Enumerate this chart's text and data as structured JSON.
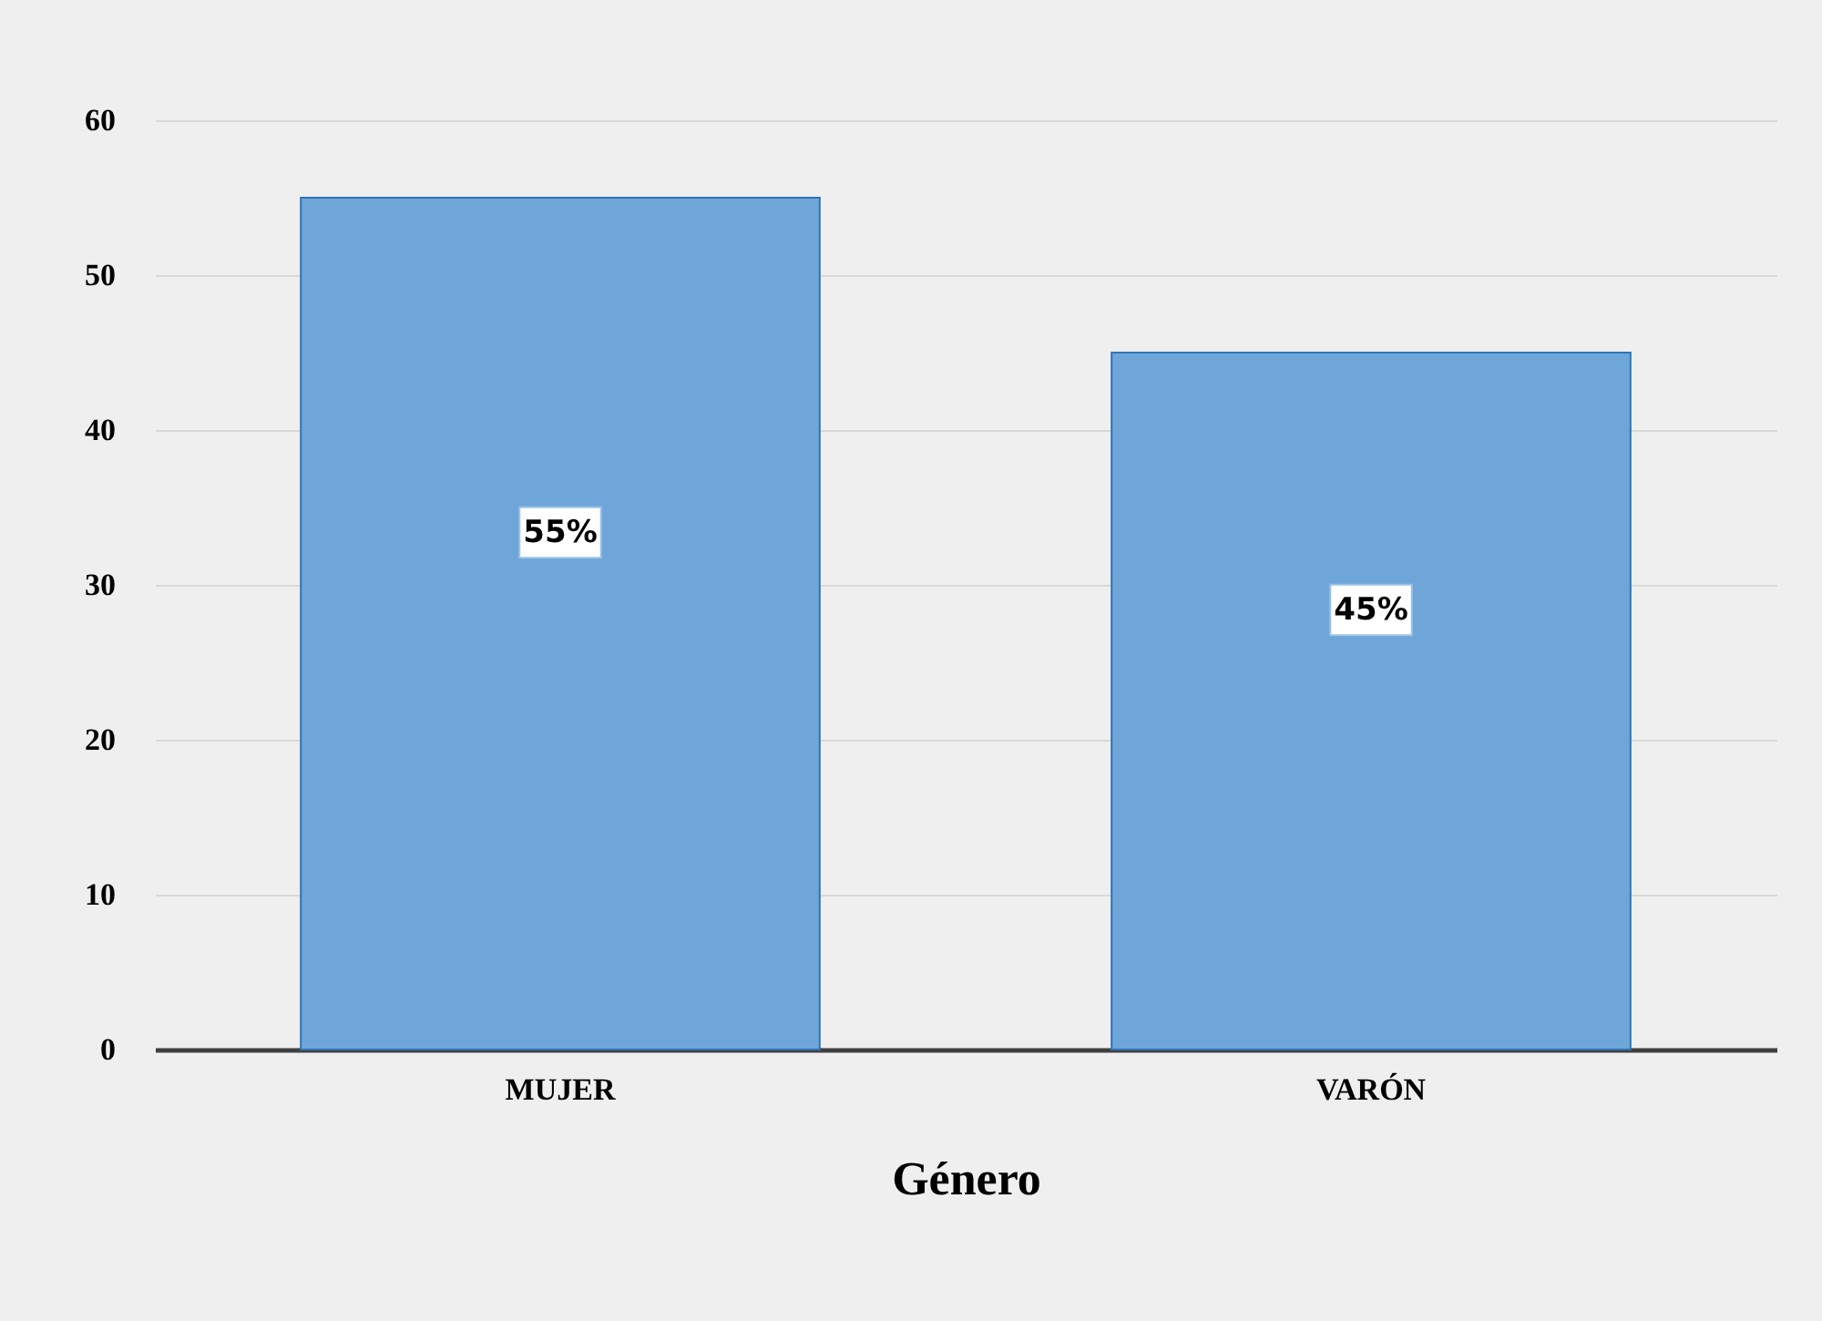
{
  "chart_data": {
    "type": "bar",
    "xlabel": "Género",
    "categories": [
      "MUJER",
      "VARÓN"
    ],
    "values": [
      55,
      45
    ],
    "value_labels": [
      "55%",
      "45%"
    ],
    "color": "#6fa6d9",
    "ylim": [
      0,
      60
    ],
    "yticks": [
      0,
      10,
      20,
      30,
      40,
      50,
      60
    ],
    "grid": "y"
  }
}
